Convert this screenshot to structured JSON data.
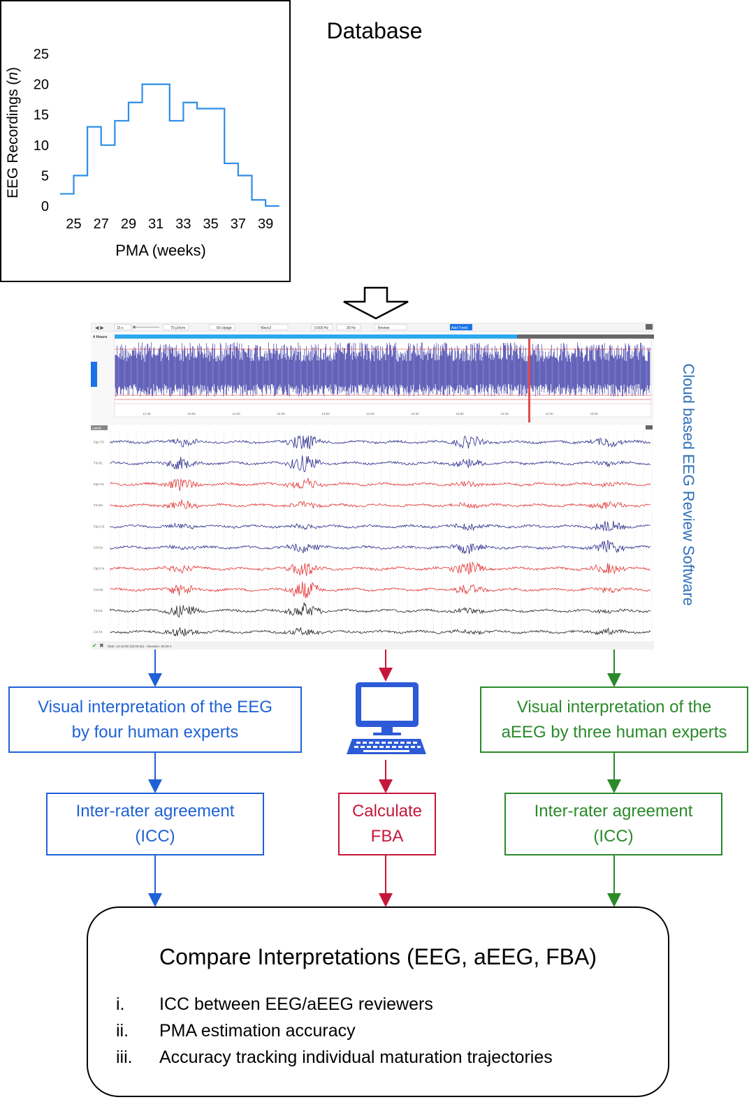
{
  "database": {
    "title": "Database",
    "chart_data": {
      "type": "step",
      "title": "",
      "xlabel": "PMA (weeks)",
      "ylabel": "EEG Recordings (n)",
      "ylabel_parts": [
        "EEG Recordings (",
        "n",
        ")"
      ],
      "x_ticks": [
        "25",
        "27",
        "29",
        "31",
        "33",
        "35",
        "37",
        "39"
      ],
      "y_ticks": [
        "0",
        "5",
        "10",
        "15",
        "20",
        "25"
      ],
      "xlim": [
        23.7,
        39.3
      ],
      "ylim": [
        0,
        25
      ],
      "series": [
        {
          "color": "#2e8ee6",
          "x": [
            24,
            25,
            26,
            27,
            28,
            29,
            30,
            31,
            32,
            33,
            34,
            35,
            36,
            37,
            38,
            39
          ],
          "values": [
            2,
            5,
            13,
            10,
            14,
            17,
            20,
            20,
            14,
            17,
            16,
            16,
            7,
            5,
            1,
            0
          ]
        }
      ]
    }
  },
  "software": {
    "label": "Cloud based EEG Review Software",
    "channels": [
      "Fp1-T3",
      "T3-O1",
      "Fp2-T4",
      "T4-O2",
      "Fp1-C3",
      "C3-O1",
      "Fp2-C4",
      "C4-O2",
      "T3-C3",
      "C4-T4"
    ],
    "channel_colors": [
      "#2a2a8c",
      "#2a2a8c",
      "#e23030",
      "#e23030",
      "#2a2a8c",
      "#2a2a8c",
      "#e23030",
      "#e23030",
      "#222222",
      "#222222"
    ],
    "toolbar": {
      "seconds": "15 s",
      "sensitivity": "70 µV/cm",
      "page": "60 s/page",
      "filter": "Wavc2",
      "low_cut": "0.500 Hz",
      "high_cut": "30 Hz",
      "mode": "Review",
      "add_trend": "Add Trend"
    },
    "trend_header": "4 Hours",
    "trend_times": [
      "11:40",
      "12:00",
      "12:20",
      "12:40",
      "13:00",
      "13:20",
      "13:40",
      "14:00",
      "14:20",
      "14:40",
      "15:00"
    ],
    "labels_tab": "Labels",
    "status": "Start: 14:16:02 (03:04:51) - Duration: 60.00 s"
  },
  "flow": {
    "eeg_box": "Visual interpretation of the EEG\nby four human experts",
    "aeeg_box": "Visual interpretation of the\naEEG by three human experts",
    "icc_left": "Inter-rater agreement\n(ICC)",
    "fba_box": "Calculate\nFBA",
    "icc_right": "Inter-rater agreement\n(ICC)",
    "computer_icon": "computer-icon"
  },
  "compare": {
    "title": "Compare Interpretations (EEG, aEEG, FBA)",
    "items": [
      {
        "num": "i.",
        "text": "ICC between EEG/aEEG reviewers"
      },
      {
        "num": "ii.",
        "text": "PMA estimation accuracy"
      },
      {
        "num": "iii.",
        "text": "Accuracy tracking individual maturation trajectories"
      }
    ]
  },
  "colors": {
    "blue": "#1f62d6",
    "red": "#c6173a",
    "green": "#2a8a2a",
    "software_label": "#2f6fb8",
    "histogram": "#2e8ee6"
  }
}
